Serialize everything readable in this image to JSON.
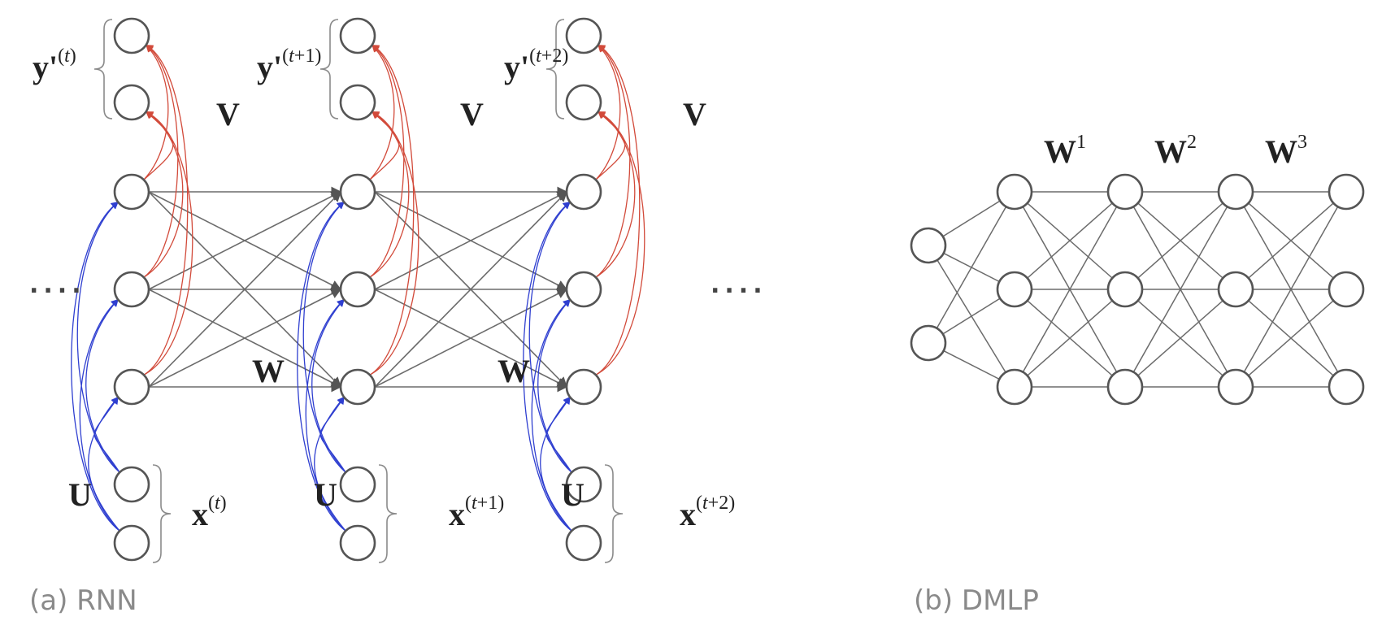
{
  "rnn": {
    "caption": "(a) RNN",
    "weight_recurrent": "W",
    "weight_output": "V",
    "weight_input": "U",
    "ellipsis": "....",
    "steps": [
      {
        "output": {
          "base": "y'",
          "sup_open": "(",
          "sup_t": "t",
          "sup_rest": ")"
        },
        "input": {
          "base": "x",
          "sup_open": "(",
          "sup_t": "t",
          "sup_rest": ")"
        }
      },
      {
        "output": {
          "base": "y'",
          "sup_open": "(",
          "sup_t": "t",
          "sup_rest": "+1)"
        },
        "input": {
          "base": "x",
          "sup_open": "(",
          "sup_t": "t",
          "sup_rest": "+1)"
        }
      },
      {
        "output": {
          "base": "y'",
          "sup_open": "(",
          "sup_t": "t",
          "sup_rest": "+2)"
        },
        "input": {
          "base": "x",
          "sup_open": "(",
          "sup_t": "t",
          "sup_rest": "+2)"
        }
      }
    ]
  },
  "dmlp": {
    "caption": "(b) DMLP",
    "weights": [
      {
        "base": "W",
        "sup": "1"
      },
      {
        "base": "W",
        "sup": "2"
      },
      {
        "base": "W",
        "sup": "3"
      }
    ]
  },
  "colors": {
    "recurrent_edges": "#6b6b6b",
    "output_edges": "#d24a3a",
    "input_edges": "#2f3fd0"
  }
}
